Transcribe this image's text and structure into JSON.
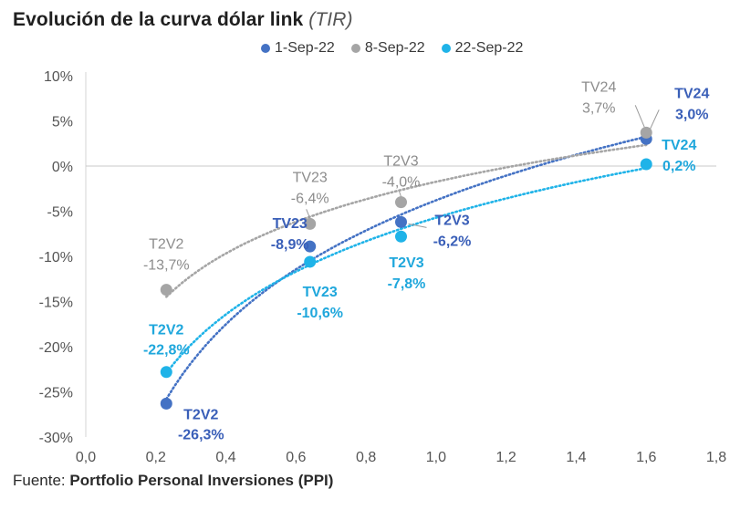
{
  "chart_data": {
    "type": "scatter",
    "title": "Evolución de la curva dólar link",
    "subtitle": "(TIR)",
    "xlabel": "",
    "ylabel": "",
    "xlim": [
      0,
      1.8
    ],
    "ylim": [
      -30,
      10
    ],
    "x_ticks": [
      0.0,
      0.2,
      0.4,
      0.6,
      0.8,
      1.0,
      1.2,
      1.4,
      1.6,
      1.8
    ],
    "x_tick_labels": [
      "0,0",
      "0,2",
      "0,4",
      "0,6",
      "0,8",
      "1,0",
      "1,2",
      "1,4",
      "1,6",
      "1,8"
    ],
    "y_ticks": [
      10,
      5,
      0,
      -5,
      -10,
      -15,
      -20,
      -25,
      -30
    ],
    "y_tick_labels": [
      "10%",
      "5%",
      "0%",
      "-5%",
      "-10%",
      "-15%",
      "-20%",
      "-25%",
      "-30%"
    ],
    "grid": false,
    "trendline": "logarithmic (dotted)",
    "legend_position": "top-center",
    "series": [
      {
        "name": "1-Sep-22",
        "color": "#4472c4",
        "label_color": "#3a5fb8",
        "points": [
          {
            "bond": "T2V2",
            "x": 0.23,
            "y": -26.3,
            "label": "-26,3%"
          },
          {
            "bond": "TV23",
            "x": 0.64,
            "y": -8.9,
            "label": "-8,9%"
          },
          {
            "bond": "T2V3",
            "x": 0.9,
            "y": -6.2,
            "label": "-6,2%"
          },
          {
            "bond": "TV24",
            "x": 1.6,
            "y": 3.0,
            "label": "3,0%"
          }
        ]
      },
      {
        "name": "8-Sep-22",
        "color": "#a5a5a5",
        "label_color": "#8c8c8c",
        "points": [
          {
            "bond": "T2V2",
            "x": 0.23,
            "y": -13.7,
            "label": "-13,7%"
          },
          {
            "bond": "TV23",
            "x": 0.64,
            "y": -6.4,
            "label": "-6,4%"
          },
          {
            "bond": "T2V3",
            "x": 0.9,
            "y": -4.0,
            "label": "-4,0%"
          },
          {
            "bond": "TV24",
            "x": 1.6,
            "y": 3.7,
            "label": "3,7%"
          }
        ]
      },
      {
        "name": "22-Sep-22",
        "color": "#1fb3e8",
        "label_color": "#1fa7dc",
        "points": [
          {
            "bond": "T2V2",
            "x": 0.23,
            "y": -22.8,
            "label": "-22,8%"
          },
          {
            "bond": "TV23",
            "x": 0.64,
            "y": -10.6,
            "label": "-10,6%"
          },
          {
            "bond": "T2V3",
            "x": 0.9,
            "y": -7.8,
            "label": "-7,8%"
          },
          {
            "bond": "TV24",
            "x": 1.6,
            "y": 0.2,
            "label": "0,2%"
          }
        ]
      }
    ]
  },
  "source": {
    "prefix": "Fuente: ",
    "name": "Portfolio Personal Inversiones (PPI)"
  }
}
